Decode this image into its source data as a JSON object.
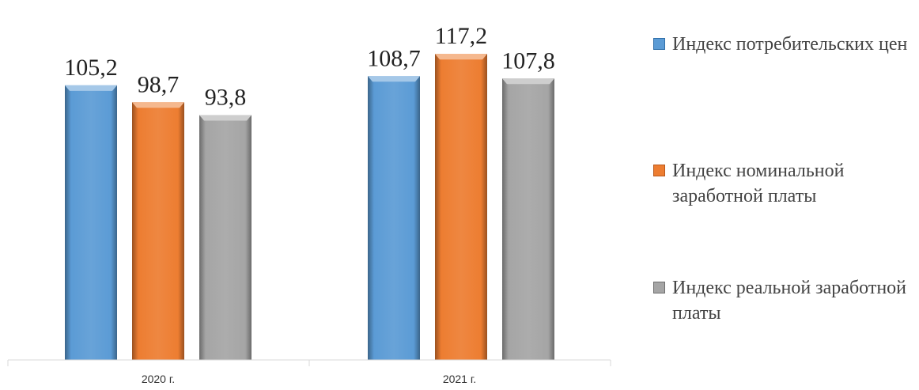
{
  "chart_data": {
    "type": "bar",
    "categories": [
      "2020 г.",
      "2021 г."
    ],
    "series": [
      {
        "name": "Индекс потребительских цен",
        "values": [
          105.2,
          108.7
        ],
        "value_labels": [
          "105,2",
          "108,7"
        ],
        "color": "#5b9bd5"
      },
      {
        "name": "Индекс номинальной заработной платы",
        "values": [
          98.7,
          117.2
        ],
        "value_labels": [
          "98,7",
          "117,2"
        ],
        "color": "#ed7d31"
      },
      {
        "name": "Индекс реальной заработной платы",
        "values": [
          93.8,
          107.8
        ],
        "value_labels": [
          "93,8",
          "107,8"
        ],
        "color": "#a5a5a5"
      }
    ],
    "title": "",
    "xlabel": "",
    "ylabel": "",
    "ylim": [
      0,
      120
    ],
    "grid": false,
    "legend": "right"
  }
}
